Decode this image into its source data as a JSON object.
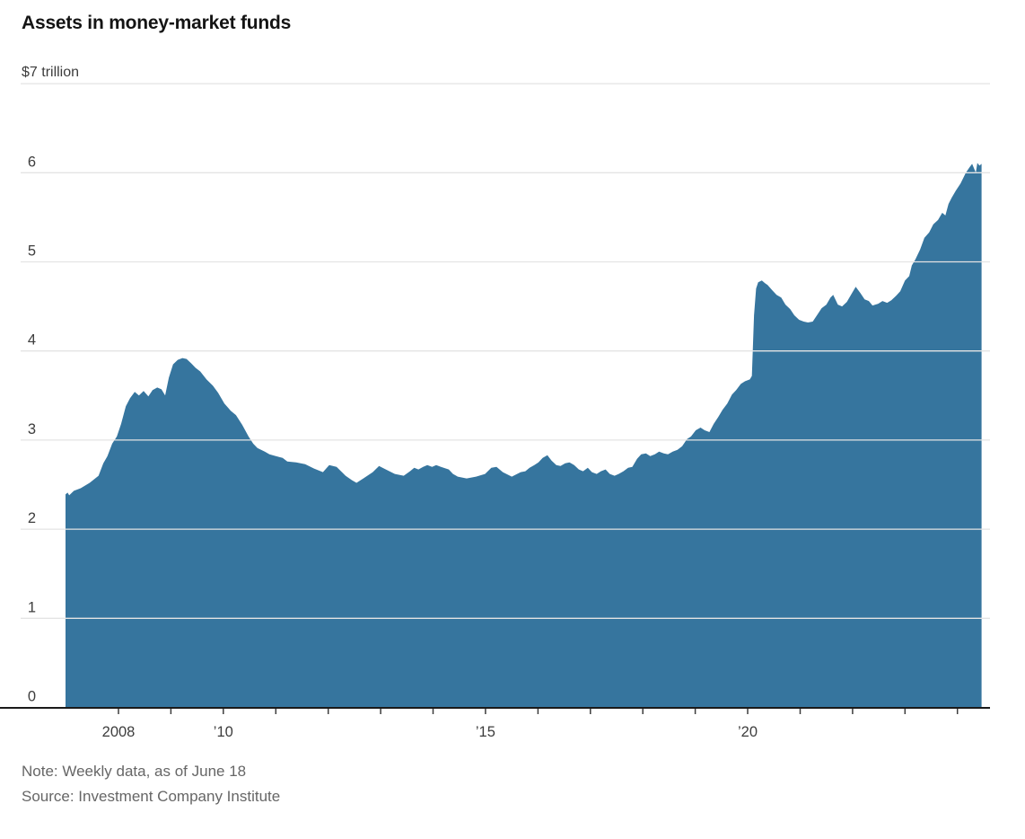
{
  "header": {
    "title": "Assets in money-market funds"
  },
  "notes": {
    "note": "Note: Weekly data, as of June 18",
    "source": "Source: Investment Company Institute"
  },
  "chart_data": {
    "type": "area",
    "title": "Assets in money-market funds",
    "unit_top_label": "$7 trillion",
    "xlabel": "",
    "ylabel": "trillions of dollars",
    "ylim": [
      0,
      7
    ],
    "xlim": [
      2006.99,
      2024.47
    ],
    "grid": true,
    "legend_position": "none",
    "colors": {
      "area": "#36759E",
      "gridline": "#e4e4e4",
      "axis_line": "#1a1a1a",
      "tick": "#3c3c3c",
      "tick_label": "#3d3d3d"
    },
    "y_axis": {
      "tick_values": [
        0,
        1,
        2,
        3,
        4,
        5,
        6
      ],
      "tick_labels": [
        "0",
        "1",
        "2",
        "3",
        "4",
        "5",
        "6"
      ],
      "top_gridline_value": 7
    },
    "x_axis": {
      "minor_tick_years": [
        2008,
        2009,
        2010,
        2011,
        2012,
        2013,
        2014,
        2015,
        2016,
        2017,
        2018,
        2019,
        2020,
        2021,
        2022,
        2023,
        2024
      ],
      "labels": [
        {
          "year": 2008,
          "label": "2008"
        },
        {
          "year": 2010,
          "label": "’10"
        },
        {
          "year": 2015,
          "label": "’15"
        },
        {
          "year": 2020,
          "label": "’20"
        }
      ]
    },
    "series": [
      {
        "name": "Assets in money-market funds ($ trillions)",
        "points": [
          [
            2006.99,
            2.39
          ],
          [
            2007.03,
            2.41
          ],
          [
            2007.06,
            2.38
          ],
          [
            2007.15,
            2.43
          ],
          [
            2007.28,
            2.46
          ],
          [
            2007.45,
            2.52
          ],
          [
            2007.62,
            2.6
          ],
          [
            2007.71,
            2.74
          ],
          [
            2007.79,
            2.82
          ],
          [
            2007.88,
            2.96
          ],
          [
            2007.97,
            3.04
          ],
          [
            2008.05,
            3.18
          ],
          [
            2008.14,
            3.38
          ],
          [
            2008.22,
            3.47
          ],
          [
            2008.31,
            3.54
          ],
          [
            2008.39,
            3.5
          ],
          [
            2008.48,
            3.55
          ],
          [
            2008.57,
            3.49
          ],
          [
            2008.65,
            3.56
          ],
          [
            2008.74,
            3.59
          ],
          [
            2008.82,
            3.57
          ],
          [
            2008.89,
            3.5
          ],
          [
            2008.96,
            3.7
          ],
          [
            2009.04,
            3.85
          ],
          [
            2009.13,
            3.9
          ],
          [
            2009.22,
            3.92
          ],
          [
            2009.3,
            3.91
          ],
          [
            2009.39,
            3.86
          ],
          [
            2009.47,
            3.81
          ],
          [
            2009.56,
            3.77
          ],
          [
            2009.68,
            3.68
          ],
          [
            2009.8,
            3.61
          ],
          [
            2009.9,
            3.53
          ],
          [
            2010.02,
            3.41
          ],
          [
            2010.14,
            3.33
          ],
          [
            2010.24,
            3.28
          ],
          [
            2010.36,
            3.17
          ],
          [
            2010.48,
            3.04
          ],
          [
            2010.57,
            2.96
          ],
          [
            2010.65,
            2.91
          ],
          [
            2010.79,
            2.87
          ],
          [
            2010.88,
            2.84
          ],
          [
            2011.0,
            2.82
          ],
          [
            2011.13,
            2.8
          ],
          [
            2011.22,
            2.76
          ],
          [
            2011.39,
            2.75
          ],
          [
            2011.56,
            2.73
          ],
          [
            2011.73,
            2.68
          ],
          [
            2011.9,
            2.64
          ],
          [
            2012.02,
            2.72
          ],
          [
            2012.16,
            2.7
          ],
          [
            2012.33,
            2.6
          ],
          [
            2012.45,
            2.55
          ],
          [
            2012.54,
            2.52
          ],
          [
            2012.67,
            2.57
          ],
          [
            2012.85,
            2.64
          ],
          [
            2012.97,
            2.71
          ],
          [
            2013.1,
            2.67
          ],
          [
            2013.27,
            2.62
          ],
          [
            2013.44,
            2.6
          ],
          [
            2013.56,
            2.65
          ],
          [
            2013.64,
            2.69
          ],
          [
            2013.72,
            2.67
          ],
          [
            2013.81,
            2.7
          ],
          [
            2013.89,
            2.72
          ],
          [
            2013.98,
            2.7
          ],
          [
            2014.06,
            2.72
          ],
          [
            2014.15,
            2.7
          ],
          [
            2014.3,
            2.67
          ],
          [
            2014.38,
            2.62
          ],
          [
            2014.47,
            2.59
          ],
          [
            2014.64,
            2.57
          ],
          [
            2014.82,
            2.59
          ],
          [
            2014.99,
            2.62
          ],
          [
            2015.11,
            2.69
          ],
          [
            2015.21,
            2.7
          ],
          [
            2015.33,
            2.64
          ],
          [
            2015.5,
            2.59
          ],
          [
            2015.67,
            2.64
          ],
          [
            2015.76,
            2.65
          ],
          [
            2015.84,
            2.69
          ],
          [
            2015.93,
            2.72
          ],
          [
            2016.01,
            2.75
          ],
          [
            2016.09,
            2.8
          ],
          [
            2016.18,
            2.83
          ],
          [
            2016.26,
            2.77
          ],
          [
            2016.35,
            2.72
          ],
          [
            2016.43,
            2.71
          ],
          [
            2016.52,
            2.74
          ],
          [
            2016.6,
            2.75
          ],
          [
            2016.69,
            2.72
          ],
          [
            2016.78,
            2.67
          ],
          [
            2016.86,
            2.65
          ],
          [
            2016.95,
            2.69
          ],
          [
            2017.03,
            2.64
          ],
          [
            2017.12,
            2.62
          ],
          [
            2017.2,
            2.65
          ],
          [
            2017.29,
            2.67
          ],
          [
            2017.37,
            2.62
          ],
          [
            2017.46,
            2.6
          ],
          [
            2017.54,
            2.62
          ],
          [
            2017.63,
            2.65
          ],
          [
            2017.72,
            2.69
          ],
          [
            2017.8,
            2.7
          ],
          [
            2017.89,
            2.79
          ],
          [
            2017.97,
            2.84
          ],
          [
            2018.06,
            2.85
          ],
          [
            2018.14,
            2.82
          ],
          [
            2018.23,
            2.84
          ],
          [
            2018.31,
            2.87
          ],
          [
            2018.4,
            2.85
          ],
          [
            2018.48,
            2.84
          ],
          [
            2018.57,
            2.87
          ],
          [
            2018.66,
            2.89
          ],
          [
            2018.75,
            2.93
          ],
          [
            2018.84,
            3.01
          ],
          [
            2018.92,
            3.04
          ],
          [
            2019.01,
            3.11
          ],
          [
            2019.1,
            3.14
          ],
          [
            2019.18,
            3.11
          ],
          [
            2019.27,
            3.09
          ],
          [
            2019.35,
            3.18
          ],
          [
            2019.44,
            3.26
          ],
          [
            2019.52,
            3.34
          ],
          [
            2019.61,
            3.41
          ],
          [
            2019.7,
            3.51
          ],
          [
            2019.78,
            3.56
          ],
          [
            2019.87,
            3.63
          ],
          [
            2019.95,
            3.66
          ],
          [
            2020.04,
            3.68
          ],
          [
            2020.08,
            3.72
          ],
          [
            2020.12,
            4.4
          ],
          [
            2020.16,
            4.7
          ],
          [
            2020.2,
            4.77
          ],
          [
            2020.27,
            4.79
          ],
          [
            2020.33,
            4.76
          ],
          [
            2020.38,
            4.74
          ],
          [
            2020.47,
            4.68
          ],
          [
            2020.55,
            4.63
          ],
          [
            2020.64,
            4.6
          ],
          [
            2020.72,
            4.52
          ],
          [
            2020.81,
            4.47
          ],
          [
            2020.89,
            4.4
          ],
          [
            2020.98,
            4.35
          ],
          [
            2021.07,
            4.33
          ],
          [
            2021.15,
            4.32
          ],
          [
            2021.24,
            4.33
          ],
          [
            2021.32,
            4.4
          ],
          [
            2021.41,
            4.48
          ],
          [
            2021.5,
            4.52
          ],
          [
            2021.58,
            4.6
          ],
          [
            2021.63,
            4.63
          ],
          [
            2021.72,
            4.52
          ],
          [
            2021.8,
            4.5
          ],
          [
            2021.89,
            4.55
          ],
          [
            2021.97,
            4.63
          ],
          [
            2022.06,
            4.72
          ],
          [
            2022.15,
            4.65
          ],
          [
            2022.23,
            4.58
          ],
          [
            2022.31,
            4.56
          ],
          [
            2022.38,
            4.51
          ],
          [
            2022.49,
            4.53
          ],
          [
            2022.57,
            4.56
          ],
          [
            2022.66,
            4.54
          ],
          [
            2022.74,
            4.57
          ],
          [
            2022.83,
            4.62
          ],
          [
            2022.91,
            4.67
          ],
          [
            2023.0,
            4.79
          ],
          [
            2023.08,
            4.84
          ],
          [
            2023.13,
            4.96
          ],
          [
            2023.2,
            5.03
          ],
          [
            2023.29,
            5.14
          ],
          [
            2023.37,
            5.27
          ],
          [
            2023.46,
            5.33
          ],
          [
            2023.54,
            5.42
          ],
          [
            2023.63,
            5.47
          ],
          [
            2023.71,
            5.55
          ],
          [
            2023.77,
            5.52
          ],
          [
            2023.83,
            5.65
          ],
          [
            2023.89,
            5.72
          ],
          [
            2023.97,
            5.8
          ],
          [
            2024.06,
            5.88
          ],
          [
            2024.16,
            6.0
          ],
          [
            2024.23,
            6.06
          ],
          [
            2024.28,
            6.1
          ],
          [
            2024.35,
            6.0
          ],
          [
            2024.38,
            6.11
          ],
          [
            2024.42,
            6.08
          ],
          [
            2024.46,
            6.1
          ]
        ]
      }
    ]
  }
}
